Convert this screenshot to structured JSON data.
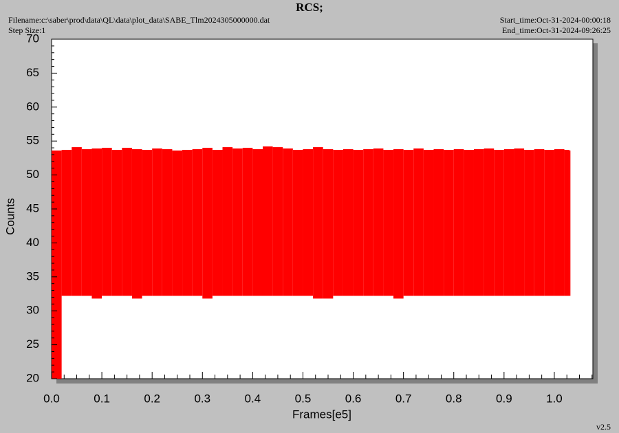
{
  "chart_data": {
    "type": "range",
    "title": "RCS;",
    "filename": "Filename:c:\\saber\\prod\\data\\QL\\data\\plot_data\\SABE_Tlm2024305000000.dat",
    "step_size": "Step Size:1",
    "start_time": "Start_time:Oct-31-2024-00:00:18",
    "end_time": "End_time:Oct-31-2024-09:26:25",
    "version": "v2.5",
    "xlabel": "Frames[e5]",
    "ylabel": "Counts",
    "color": "#ff0000",
    "x": [
      0,
      0.02,
      0.04,
      0.06,
      0.08,
      0.1,
      0.12,
      0.14,
      0.16,
      0.18,
      0.2,
      0.22,
      0.24,
      0.26,
      0.28,
      0.3,
      0.32,
      0.34,
      0.36,
      0.38,
      0.4,
      0.42,
      0.44,
      0.46,
      0.48,
      0.5,
      0.52,
      0.54,
      0.56,
      0.58,
      0.6,
      0.62,
      0.64,
      0.66,
      0.68,
      0.7,
      0.72,
      0.74,
      0.76,
      0.78,
      0.8,
      0.82,
      0.84,
      0.86,
      0.88,
      0.9,
      0.92,
      0.94,
      0.96,
      0.98,
      1.0,
      1.02,
      1.03
    ],
    "high": [
      53.6,
      53.7,
      54.1,
      53.8,
      53.9,
      54.0,
      53.7,
      54.0,
      53.8,
      53.7,
      53.9,
      53.8,
      53.6,
      53.7,
      53.8,
      54.0,
      53.7,
      54.1,
      53.9,
      54.0,
      53.8,
      54.2,
      54.1,
      53.9,
      53.7,
      53.8,
      54.1,
      53.8,
      53.7,
      53.8,
      53.7,
      53.8,
      53.9,
      53.7,
      53.8,
      53.7,
      53.9,
      53.7,
      53.8,
      53.7,
      53.8,
      53.7,
      53.8,
      53.9,
      53.7,
      53.8,
      53.9,
      53.7,
      53.8,
      53.7,
      53.8,
      53.7,
      53.6
    ],
    "low": [
      20,
      32.2,
      32.2,
      32.2,
      31.8,
      32.2,
      32.2,
      32.2,
      31.8,
      32.2,
      32.2,
      32.2,
      32.2,
      32.2,
      32.2,
      31.8,
      32.2,
      32.2,
      32.2,
      32.2,
      32.2,
      32.2,
      32.2,
      32.2,
      32.2,
      32.2,
      31.8,
      31.8,
      32.2,
      32.2,
      32.2,
      32.2,
      32.2,
      32.2,
      31.8,
      32.2,
      32.2,
      32.2,
      32.2,
      32.2,
      32.2,
      32.2,
      32.2,
      32.2,
      32.2,
      32.2,
      32.2,
      32.2,
      32.2,
      32.2,
      32.2,
      32.2,
      32.2
    ],
    "xlim": [
      0,
      1.0767
    ],
    "ylim": [
      20,
      70
    ],
    "xticks": [
      {
        "value": 0,
        "label": "0.0"
      },
      0.1,
      0.2,
      0.3,
      0.4,
      0.5,
      0.6,
      0.7,
      0.8,
      0.9,
      {
        "value": 1,
        "label": "1.0"
      }
    ],
    "yticks": [
      20,
      25,
      30,
      35,
      40,
      45,
      50,
      55,
      60,
      65,
      70
    ]
  }
}
